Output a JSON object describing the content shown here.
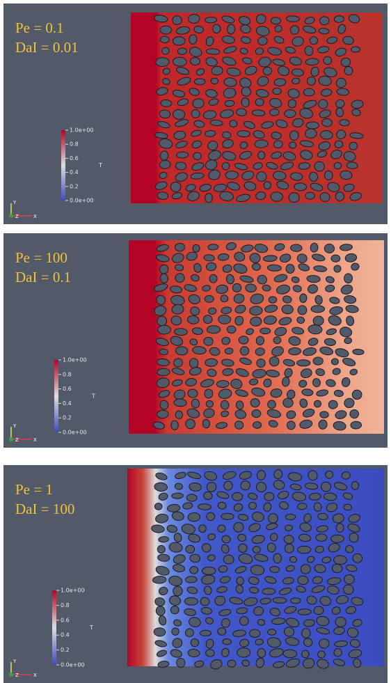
{
  "panels": [
    {
      "pe": "Pe = 0.1",
      "dai": "DaI = 0.01",
      "colorbar": {
        "title": "T",
        "ticks": [
          "1.0e+00",
          "0.8",
          "0.6",
          "0.4",
          "0.2",
          "0.0e+00"
        ]
      },
      "axes": {
        "y": "Y",
        "z": "Z",
        "x": "X"
      }
    },
    {
      "pe": "Pe = 100",
      "dai": "DaI = 0.1",
      "colorbar": {
        "title": "T",
        "ticks": [
          "1.0e+00",
          "0.8",
          "0.6",
          "0.4",
          "0.2",
          "0.0e+00"
        ]
      },
      "axes": {
        "y": "Y",
        "z": "Z",
        "x": "X"
      }
    },
    {
      "pe": "Pe = 1",
      "dai": "DaI = 100",
      "colorbar": {
        "title": "T",
        "ticks": [
          "1.0e+00",
          "0.8",
          "0.6",
          "0.4",
          "0.2",
          "0.0e+00"
        ]
      },
      "axes": {
        "y": "Y",
        "z": "Z",
        "x": "X"
      }
    }
  ]
}
